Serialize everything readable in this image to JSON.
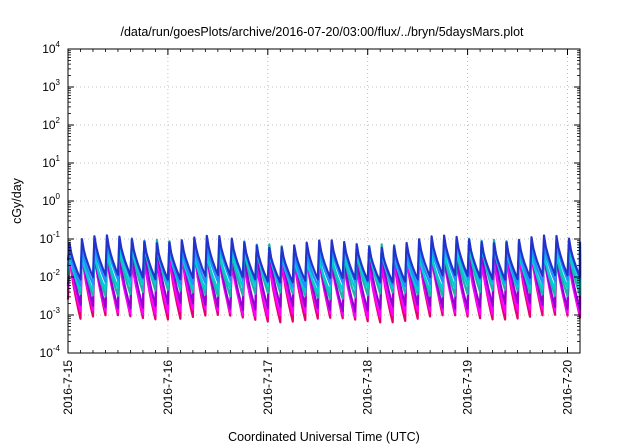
{
  "chart_data": {
    "type": "line",
    "title": "/data/run/goesPlots/archive/2016-07-20/03:00/flux/../bryn/5daysMars.plot",
    "xlabel": "Coordinated Universal Time (UTC)",
    "ylabel": "cGy/day",
    "yscale": "log",
    "ylim": [
      0.0001,
      10000
    ],
    "y_ticks": [
      {
        "base": "10",
        "exp": "-4"
      },
      {
        "base": "10",
        "exp": "-3"
      },
      {
        "base": "10",
        "exp": "-2"
      },
      {
        "base": "10",
        "exp": "-1"
      },
      {
        "base": "10",
        "exp": "0"
      },
      {
        "base": "10",
        "exp": "1"
      },
      {
        "base": "10",
        "exp": "2"
      },
      {
        "base": "10",
        "exp": "3"
      },
      {
        "base": "10",
        "exp": "4"
      }
    ],
    "x_ticks": [
      "2016-7-15",
      "2016-7-16",
      "2016-7-17",
      "2016-7-18",
      "2016-7-19",
      "2016-7-20"
    ],
    "xlim": [
      "2016-07-15 00:00",
      "2016-07-20 03:00"
    ],
    "grid": true,
    "sawtooth_period_hours": 3,
    "series": [
      {
        "color": "#e8006e",
        "peak": 0.045,
        "trough": 0.0008
      },
      {
        "color": "#ff00ff",
        "peak": 0.035,
        "trough": 0.0011
      },
      {
        "color": "#9400d3",
        "peak": 0.055,
        "trough": 0.0016
      },
      {
        "color": "#20b2aa",
        "peak": 0.06,
        "trough": 0.0035
      },
      {
        "color": "#00ced1",
        "peak": 0.05,
        "trough": 0.005
      },
      {
        "color": "#1e90ff",
        "peak": 0.07,
        "trough": 0.007
      },
      {
        "color": "#2233cc",
        "peak": 0.085,
        "trough": 0.009
      }
    ]
  }
}
